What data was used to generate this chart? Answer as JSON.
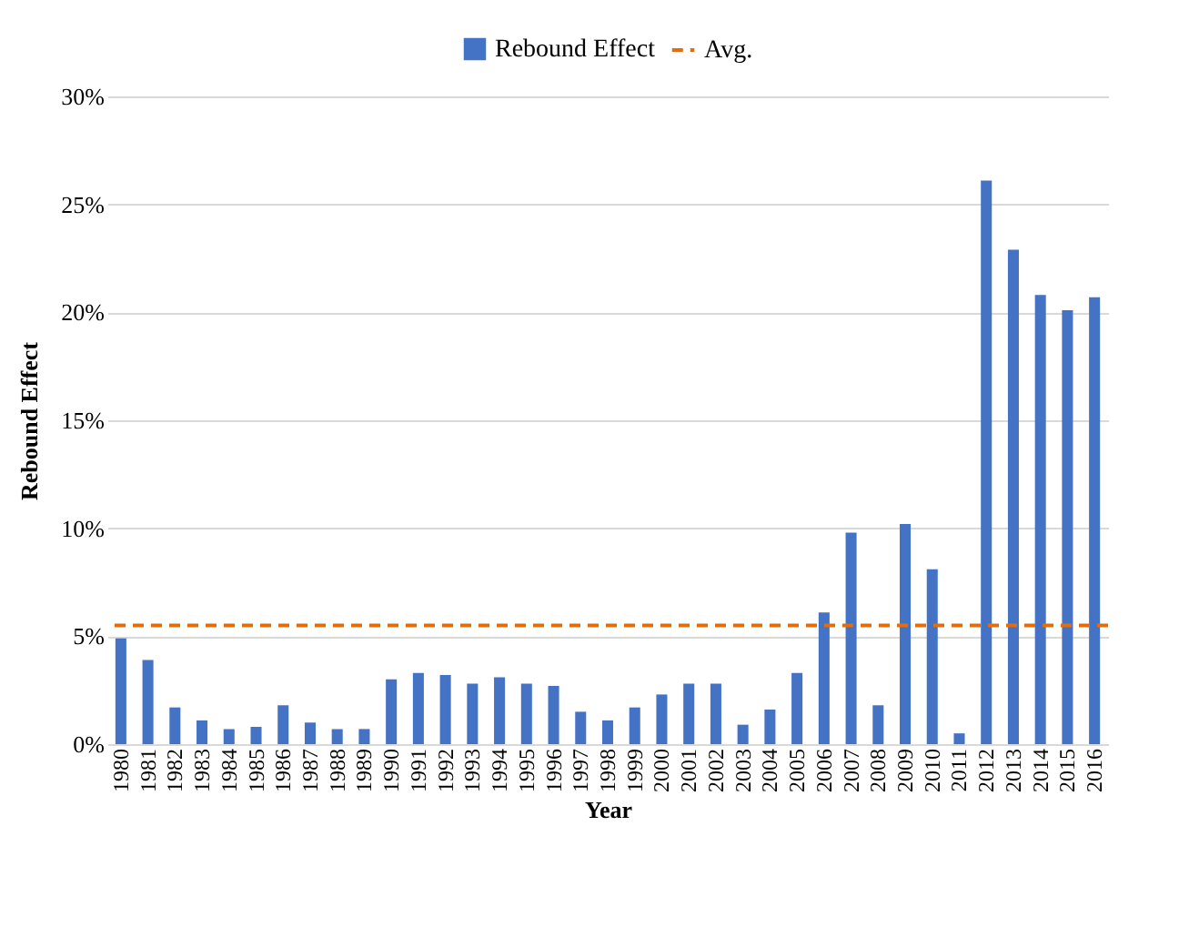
{
  "chart_data": {
    "type": "bar",
    "xlabel": "Year",
    "ylabel": "Rebound Effect",
    "categories": [
      "1980",
      "1981",
      "1982",
      "1983",
      "1984",
      "1985",
      "1986",
      "1987",
      "1988",
      "1989",
      "1990",
      "1991",
      "1992",
      "1993",
      "1994",
      "1995",
      "1996",
      "1997",
      "1998",
      "1999",
      "2000",
      "2001",
      "2002",
      "2003",
      "2004",
      "2005",
      "2006",
      "2007",
      "2008",
      "2009",
      "2010",
      "2011",
      "2012",
      "2013",
      "2014",
      "2015",
      "2016"
    ],
    "series": [
      {
        "name": "Rebound Effect",
        "color": "#4472c4",
        "values": [
          4.9,
          3.9,
          1.7,
          1.1,
          0.7,
          0.8,
          1.8,
          1.0,
          0.7,
          0.7,
          3.0,
          3.3,
          3.2,
          2.8,
          3.1,
          2.8,
          2.7,
          1.5,
          1.1,
          1.7,
          2.3,
          2.8,
          2.8,
          0.9,
          1.6,
          3.3,
          6.1,
          9.8,
          1.8,
          10.2,
          8.1,
          0.5,
          26.1,
          22.9,
          20.8,
          20.1,
          20.7
        ]
      }
    ],
    "ref_lines": [
      {
        "axis": "y",
        "value": 5.5,
        "label": "Avg.",
        "color": "#e46c0a",
        "line_style": "dashed"
      }
    ],
    "ylim": [
      0,
      30
    ],
    "yticks": [
      {
        "value": 0,
        "label": "0%"
      },
      {
        "value": 5,
        "label": "5%"
      },
      {
        "value": 10,
        "label": "10%"
      },
      {
        "value": 15,
        "label": "15%"
      },
      {
        "value": 20,
        "label": "20%"
      },
      {
        "value": 25,
        "label": "25%"
      },
      {
        "value": 30,
        "label": "30%"
      }
    ],
    "grid": "y",
    "legend": "top"
  }
}
